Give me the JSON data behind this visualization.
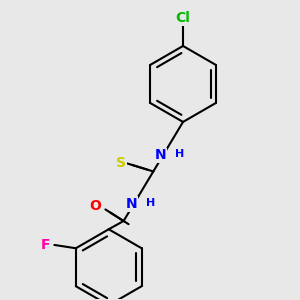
{
  "background_color": "#e8e8e8",
  "bond_color": "#000000",
  "bond_width": 1.5,
  "dbo": 0.018,
  "atom_colors": {
    "Cl": "#00bb00",
    "N": "#0000ff",
    "S": "#cccc00",
    "O": "#ff0000",
    "F": "#ff00aa",
    "C": "#000000"
  },
  "font_size": 10,
  "figsize": [
    3.0,
    3.0
  ]
}
